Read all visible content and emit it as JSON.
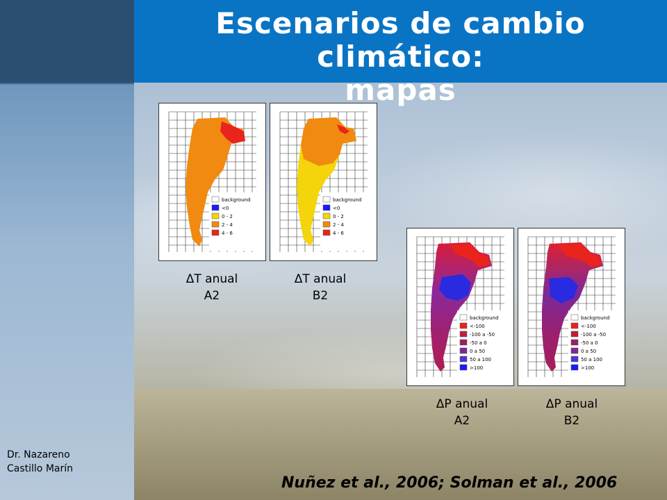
{
  "slide": {
    "title_line1": "Escenarios de cambio climático:",
    "title_line2": "mapas",
    "author_line1": "Dr. Nazareno",
    "author_line2": "Castillo Marín",
    "citation": "Nuñez et al., 2006; Solman et al., 2006"
  },
  "maps": [
    {
      "caption_line1": "ΔT anual",
      "caption_line2": "A2",
      "legend": [
        "background",
        "<0",
        "0 - 2",
        "2 - 4",
        "4 - 6"
      ],
      "legend_colors": [
        "#ffffff",
        "#1a1aff",
        "#f4d40a",
        "#f08a10",
        "#e8241c"
      ]
    },
    {
      "caption_line1": "ΔT anual",
      "caption_line2": "B2",
      "legend": [
        "background",
        "<0",
        "0 - 2",
        "2 - 4",
        "4 - 6"
      ],
      "legend_colors": [
        "#ffffff",
        "#1a1aff",
        "#f4d40a",
        "#f08a10",
        "#e8241c"
      ]
    },
    {
      "caption_line1": "ΔP anual",
      "caption_line2": "A2",
      "legend": [
        "background",
        "<-100",
        "-100 a -50",
        "-50 a 0",
        "0 a 50",
        "50 a 100",
        ">100"
      ],
      "legend_colors": [
        "#ffffff",
        "#e8241c",
        "#c01c40",
        "#9a2060",
        "#7a2a9a",
        "#4a3ad0",
        "#1a1aff"
      ]
    },
    {
      "caption_line1": "ΔP anual",
      "caption_line2": "B2",
      "legend": [
        "background",
        "<-100",
        "-100 a -50",
        "-50 a 0",
        "0 a 50",
        "50 a 100",
        ">100"
      ],
      "legend_colors": [
        "#ffffff",
        "#e8241c",
        "#c01c40",
        "#9a2060",
        "#7a2a9a",
        "#4a3ad0",
        "#1a1aff"
      ]
    }
  ]
}
